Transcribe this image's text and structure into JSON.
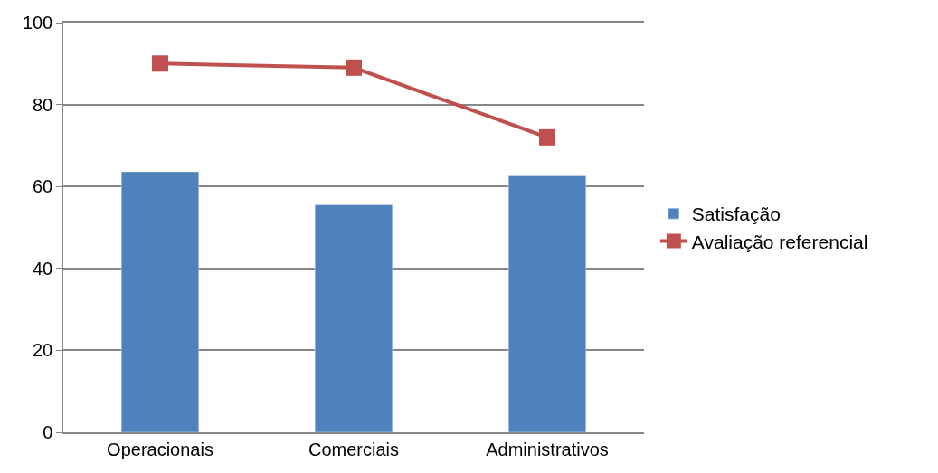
{
  "chart_data": {
    "type": "bar",
    "categories": [
      "Operacionais",
      "Comerciais",
      "Administrativos"
    ],
    "series": [
      {
        "name": "Satisfação",
        "color": "#4f81bd",
        "values": [
          63.6,
          55.5,
          62.6
        ]
      },
      {
        "name": "Avaliação referencial",
        "type": "line",
        "color": "#c0504d",
        "values": [
          90,
          89,
          72
        ]
      }
    ],
    "ylim": [
      0,
      100
    ],
    "yticks": [
      0,
      20,
      40,
      60,
      80,
      100
    ],
    "grid": "y",
    "legend": "right",
    "marker": "square"
  }
}
